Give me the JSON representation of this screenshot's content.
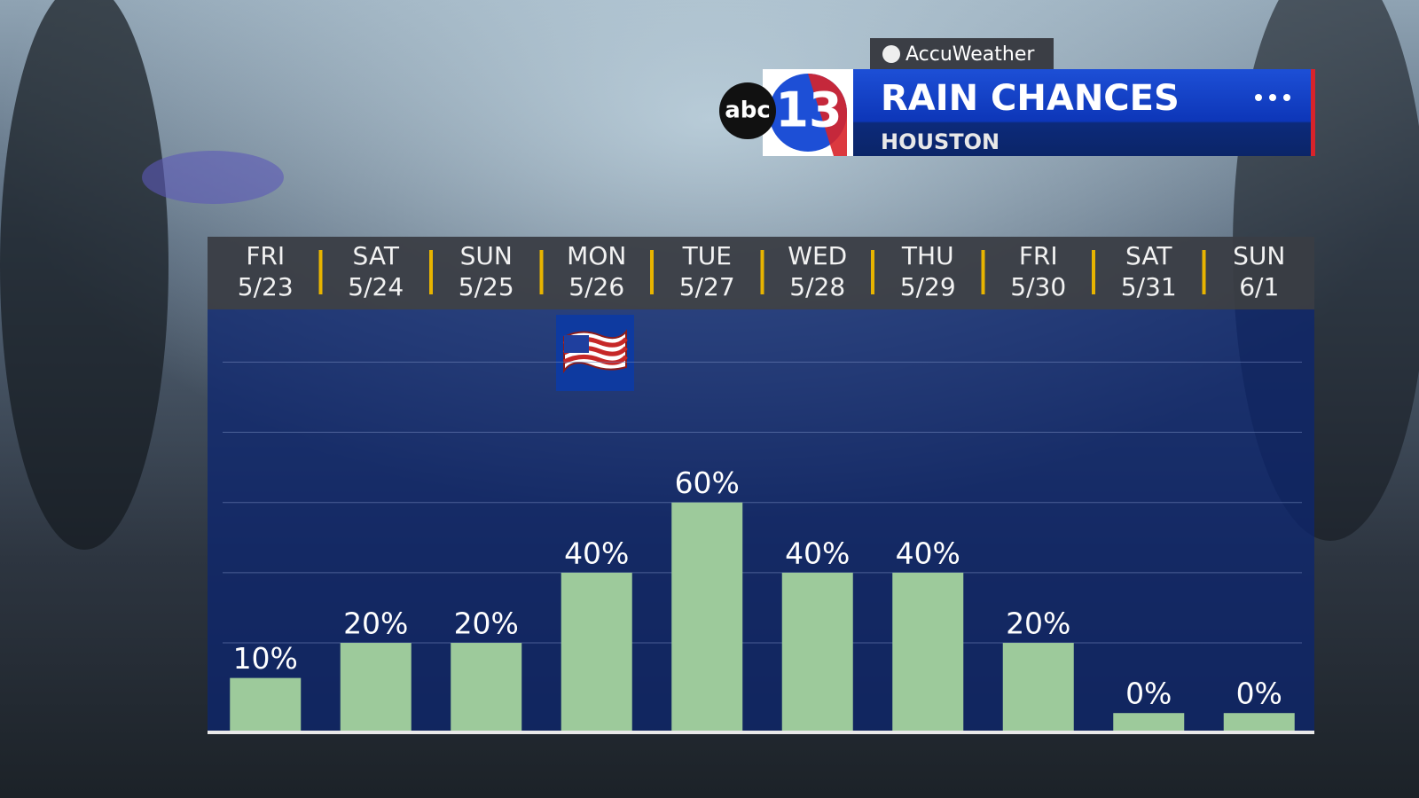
{
  "branding": {
    "source": "AccuWeather",
    "network": "abc",
    "channel": "13"
  },
  "chart_data": {
    "type": "bar",
    "title": "RAIN CHANCES",
    "subtitle": "HOUSTON",
    "weekdays": [
      "FRI",
      "SAT",
      "SUN",
      "MON",
      "TUE",
      "WED",
      "THU",
      "FRI",
      "SAT",
      "SUN"
    ],
    "categories": [
      "5/23",
      "5/24",
      "5/25",
      "5/26",
      "5/27",
      "5/28",
      "5/29",
      "5/30",
      "5/31",
      "6/1"
    ],
    "values": [
      10,
      20,
      20,
      40,
      60,
      40,
      40,
      20,
      0,
      0
    ],
    "value_labels": [
      "10%",
      "20%",
      "20%",
      "40%",
      "60%",
      "40%",
      "40%",
      "20%",
      "0%",
      "0%"
    ],
    "color": "#9dca9b",
    "ylim": [
      -5,
      115
    ],
    "yticks": [
      20,
      40,
      60,
      80,
      100
    ],
    "grid": true
  }
}
